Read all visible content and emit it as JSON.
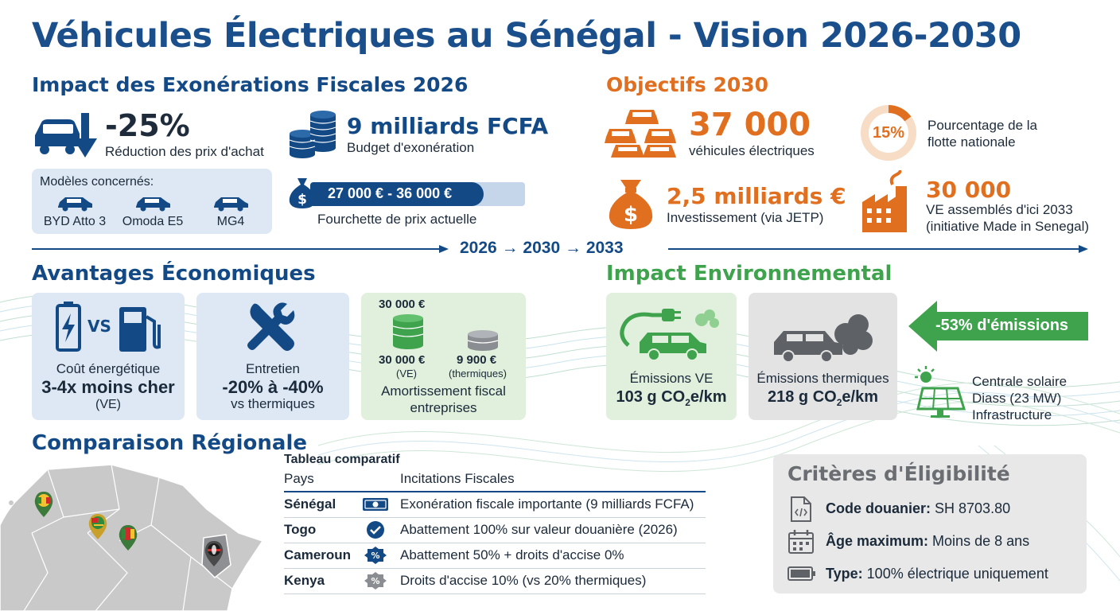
{
  "title": "Véhicules Électriques au Sénégal - Vision 2026-2030",
  "fiscal": {
    "heading": "Impact des Exonérations Fiscales 2026",
    "reduction_value": "-25%",
    "reduction_label": "Réduction des prix d'achat",
    "budget_value": "9 milliards FCFA",
    "budget_label": "Budget d'exonération",
    "models_title": "Modèles concernés:",
    "models": [
      "BYD Atto 3",
      "Omoda E5",
      "MG4"
    ],
    "price_range": "27 000 € - 36 000 €",
    "price_label": "Fourchette de prix actuelle"
  },
  "objectives": {
    "heading": "Objectifs 2030",
    "vehicles_value": "37 000",
    "vehicles_label": "véhicules électriques",
    "fleet_percent_label": "15%",
    "fleet_percent": 0.15,
    "fleet_label_line1": "Pourcentage de la",
    "fleet_label_line2": "flotte nationale",
    "investment_value": "2,5 milliards €",
    "investment_label": "Investissement (via JETP)",
    "assembled_value": "30 000",
    "assembled_line1": "VE assemblés d'ici 2033",
    "assembled_line2": "(initiative Made in Senegal)"
  },
  "timeline": {
    "labels": [
      "2026",
      "2030",
      "2033"
    ],
    "arrow": "→"
  },
  "economic": {
    "heading": "Avantages Économiques",
    "energy_vs": "VS",
    "energy_title": "Coût énergétique",
    "energy_value": "3-4x moins cher",
    "energy_sub": "(VE)",
    "maintenance_title": "Entretien",
    "maintenance_value": "-20% à -40%",
    "maintenance_sub": "vs thermiques",
    "amort_top": "30 000 €",
    "amort_ve_value": "30 000 €",
    "amort_ve_label": "(VE)",
    "amort_th_value": "9 900 €",
    "amort_th_label": "(thermiques)",
    "amort_title_line1": "Amortissement fiscal",
    "amort_title_line2": "entreprises"
  },
  "environment": {
    "heading": "Impact Environnemental",
    "ve_label": "Émissions VE",
    "ve_value": "103 g CO",
    "ve_sub": "2",
    "ve_unit": "e/km",
    "th_label": "Émissions thermiques",
    "th_value": "218 g CO",
    "th_sub": "2",
    "th_unit": "e/km",
    "reduction": "-53% d'émissions",
    "solar_line1": "Centrale solaire",
    "solar_line2": "Diass (23 MW)",
    "solar_line3": "Infrastructure"
  },
  "regional": {
    "heading": "Comparaison Régionale",
    "table_title": "Tableau comparatif",
    "col_country": "Pays",
    "col_incentives": "Incitations Fiscales",
    "rows": [
      {
        "country": "Sénégal",
        "incentive": "Exonération fiscale importante (9 milliards FCFA)",
        "icon": "money-icon"
      },
      {
        "country": "Togo",
        "incentive": "Abattement 100% sur valeur douanière (2026)",
        "icon": "check-icon"
      },
      {
        "country": "Cameroun",
        "incentive": "Abattement 50% + droits d'accise 0%",
        "icon": "percent-badge-icon"
      },
      {
        "country": "Kenya",
        "incentive": "Droits d'accise 10% (vs 20% thermiques)",
        "icon": "percent-badge-gray-icon"
      }
    ]
  },
  "eligibility": {
    "heading": "Critères d'Éligibilité",
    "items": [
      {
        "label": "Code douanier:",
        "value": " SH 8703.80",
        "icon": "code-file-icon"
      },
      {
        "label": "Âge maximum:",
        "value": " Moins de 8 ans",
        "icon": "calendar-icon"
      },
      {
        "label": "Type:",
        "value": " 100% électrique uniquement",
        "icon": "battery-icon"
      }
    ]
  },
  "colors": {
    "blue": "#134a86",
    "orange": "#e07020",
    "green": "#3fa34d",
    "gray": "#5e6166"
  }
}
